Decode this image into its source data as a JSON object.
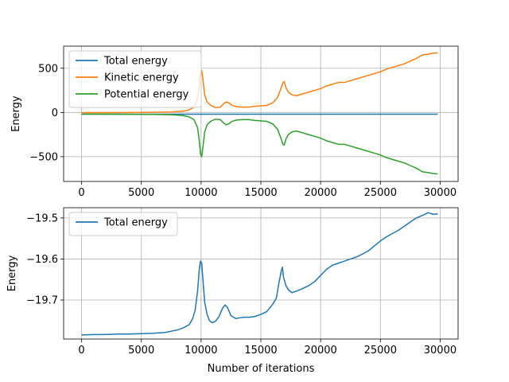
{
  "chart_data": [
    {
      "type": "line",
      "xlabel": "",
      "ylabel": "Energy",
      "xlim": [
        -1500,
        31500
      ],
      "ylim": [
        -780,
        750
      ],
      "xticks": [
        0,
        5000,
        10000,
        15000,
        20000,
        25000,
        30000
      ],
      "xtick_labels": [
        "0",
        "5000",
        "10000",
        "15000",
        "20000",
        "25000",
        "30000"
      ],
      "yticks": [
        -500,
        0,
        500
      ],
      "ytick_labels": [
        "−500",
        "0",
        "500"
      ],
      "grid": true,
      "legend_position": "top-left",
      "series": [
        {
          "name": "Total energy",
          "color": "#1f77b4",
          "points": [
            [
              0,
              -19.8
            ],
            [
              29800,
              -19.5
            ]
          ]
        },
        {
          "name": "Kinetic energy",
          "color": "#ff7f0e",
          "points": [
            [
              0,
              -2
            ],
            [
              3000,
              -1
            ],
            [
              6000,
              2
            ],
            [
              7500,
              5
            ],
            [
              8500,
              15
            ],
            [
              9000,
              30
            ],
            [
              9400,
              60
            ],
            [
              9700,
              150
            ],
            [
              9850,
              300
            ],
            [
              9950,
              450
            ],
            [
              10050,
              480
            ],
            [
              10150,
              380
            ],
            [
              10300,
              200
            ],
            [
              10500,
              120
            ],
            [
              10800,
              80
            ],
            [
              11200,
              55
            ],
            [
              11600,
              60
            ],
            [
              11900,
              100
            ],
            [
              12100,
              120
            ],
            [
              12300,
              110
            ],
            [
              12600,
              80
            ],
            [
              13000,
              65
            ],
            [
              13500,
              60
            ],
            [
              14000,
              60
            ],
            [
              14500,
              70
            ],
            [
              15000,
              75
            ],
            [
              15500,
              80
            ],
            [
              16000,
              110
            ],
            [
              16400,
              170
            ],
            [
              16700,
              280
            ],
            [
              16850,
              340
            ],
            [
              16950,
              350
            ],
            [
              17100,
              280
            ],
            [
              17300,
              230
            ],
            [
              17600,
              200
            ],
            [
              18000,
              190
            ],
            [
              18500,
              210
            ],
            [
              19000,
              230
            ],
            [
              19500,
              250
            ],
            [
              20000,
              270
            ],
            [
              20500,
              300
            ],
            [
              21000,
              320
            ],
            [
              21500,
              340
            ],
            [
              22000,
              340
            ],
            [
              22500,
              360
            ],
            [
              23000,
              380
            ],
            [
              23500,
              400
            ],
            [
              24000,
              420
            ],
            [
              24500,
              440
            ],
            [
              25000,
              460
            ],
            [
              25500,
              490
            ],
            [
              26000,
              510
            ],
            [
              26500,
              530
            ],
            [
              27000,
              550
            ],
            [
              27500,
              580
            ],
            [
              28000,
              610
            ],
            [
              28500,
              650
            ],
            [
              29000,
              660
            ],
            [
              29400,
              670
            ],
            [
              29800,
              675
            ]
          ]
        },
        {
          "name": "Potential energy",
          "color": "#2ca02c",
          "points": [
            [
              0,
              -18
            ],
            [
              3000,
              -19
            ],
            [
              6000,
              -22
            ],
            [
              7500,
              -25
            ],
            [
              8500,
              -35
            ],
            [
              9000,
              -50
            ],
            [
              9400,
              -80
            ],
            [
              9700,
              -170
            ],
            [
              9850,
              -320
            ],
            [
              9950,
              -470
            ],
            [
              10050,
              -500
            ],
            [
              10150,
              -400
            ],
            [
              10300,
              -220
            ],
            [
              10500,
              -140
            ],
            [
              10800,
              -100
            ],
            [
              11200,
              -75
            ],
            [
              11600,
              -80
            ],
            [
              11900,
              -120
            ],
            [
              12100,
              -140
            ],
            [
              12300,
              -130
            ],
            [
              12600,
              -100
            ],
            [
              13000,
              -85
            ],
            [
              13500,
              -80
            ],
            [
              14000,
              -80
            ],
            [
              14500,
              -90
            ],
            [
              15000,
              -95
            ],
            [
              15500,
              -100
            ],
            [
              16000,
              -130
            ],
            [
              16400,
              -190
            ],
            [
              16700,
              -300
            ],
            [
              16850,
              -360
            ],
            [
              16950,
              -370
            ],
            [
              17100,
              -300
            ],
            [
              17300,
              -250
            ],
            [
              17600,
              -220
            ],
            [
              18000,
              -210
            ],
            [
              18500,
              -230
            ],
            [
              19000,
              -250
            ],
            [
              19500,
              -270
            ],
            [
              20000,
              -290
            ],
            [
              20500,
              -320
            ],
            [
              21000,
              -340
            ],
            [
              21500,
              -360
            ],
            [
              22000,
              -360
            ],
            [
              22500,
              -380
            ],
            [
              23000,
              -400
            ],
            [
              23500,
              -420
            ],
            [
              24000,
              -440
            ],
            [
              24500,
              -460
            ],
            [
              25000,
              -480
            ],
            [
              25500,
              -510
            ],
            [
              26000,
              -530
            ],
            [
              26500,
              -550
            ],
            [
              27000,
              -570
            ],
            [
              27500,
              -600
            ],
            [
              28000,
              -630
            ],
            [
              28500,
              -670
            ],
            [
              29000,
              -680
            ],
            [
              29400,
              -690
            ],
            [
              29800,
              -695
            ]
          ]
        }
      ]
    },
    {
      "type": "line",
      "xlabel": "Number of iterations",
      "ylabel": "Energy",
      "xlim": [
        -1500,
        31500
      ],
      "ylim": [
        -19.795,
        -19.475
      ],
      "xticks": [
        0,
        5000,
        10000,
        15000,
        20000,
        25000,
        30000
      ],
      "xtick_labels": [
        "0",
        "5000",
        "10000",
        "15000",
        "20000",
        "25000",
        "30000"
      ],
      "yticks": [
        -19.7,
        -19.6,
        -19.5
      ],
      "ytick_labels": [
        "−19.7",
        "−19.6",
        "−19.5"
      ],
      "grid": true,
      "legend_position": "top-left",
      "series": [
        {
          "name": "Total energy",
          "color": "#1f77b4",
          "points": [
            [
              0,
              -19.785
            ],
            [
              1000,
              -19.784
            ],
            [
              2000,
              -19.784
            ],
            [
              3000,
              -19.783
            ],
            [
              4000,
              -19.783
            ],
            [
              5000,
              -19.782
            ],
            [
              6000,
              -19.781
            ],
            [
              7000,
              -19.779
            ],
            [
              7500,
              -19.776
            ],
            [
              8000,
              -19.773
            ],
            [
              8500,
              -19.768
            ],
            [
              9000,
              -19.76
            ],
            [
              9300,
              -19.745
            ],
            [
              9500,
              -19.725
            ],
            [
              9700,
              -19.68
            ],
            [
              9850,
              -19.625
            ],
            [
              9950,
              -19.605
            ],
            [
              10050,
              -19.61
            ],
            [
              10150,
              -19.65
            ],
            [
              10300,
              -19.705
            ],
            [
              10500,
              -19.735
            ],
            [
              10700,
              -19.75
            ],
            [
              10900,
              -19.755
            ],
            [
              11200,
              -19.752
            ],
            [
              11500,
              -19.74
            ],
            [
              11800,
              -19.72
            ],
            [
              12000,
              -19.712
            ],
            [
              12200,
              -19.718
            ],
            [
              12500,
              -19.738
            ],
            [
              12900,
              -19.745
            ],
            [
              13300,
              -19.743
            ],
            [
              13700,
              -19.742
            ],
            [
              14100,
              -19.742
            ],
            [
              14500,
              -19.74
            ],
            [
              15000,
              -19.735
            ],
            [
              15500,
              -19.728
            ],
            [
              16000,
              -19.71
            ],
            [
              16300,
              -19.695
            ],
            [
              16500,
              -19.66
            ],
            [
              16700,
              -19.63
            ],
            [
              16800,
              -19.62
            ],
            [
              16900,
              -19.645
            ],
            [
              17100,
              -19.665
            ],
            [
              17300,
              -19.675
            ],
            [
              17600,
              -19.682
            ],
            [
              18000,
              -19.678
            ],
            [
              18500,
              -19.672
            ],
            [
              19000,
              -19.665
            ],
            [
              19500,
              -19.655
            ],
            [
              20000,
              -19.64
            ],
            [
              20500,
              -19.625
            ],
            [
              21000,
              -19.615
            ],
            [
              21500,
              -19.61
            ],
            [
              22000,
              -19.605
            ],
            [
              22500,
              -19.6
            ],
            [
              23000,
              -19.595
            ],
            [
              23500,
              -19.588
            ],
            [
              24000,
              -19.58
            ],
            [
              24500,
              -19.568
            ],
            [
              25000,
              -19.556
            ],
            [
              25500,
              -19.546
            ],
            [
              26000,
              -19.538
            ],
            [
              26500,
              -19.53
            ],
            [
              27000,
              -19.52
            ],
            [
              27500,
              -19.51
            ],
            [
              28000,
              -19.5
            ],
            [
              28500,
              -19.494
            ],
            [
              29000,
              -19.487
            ],
            [
              29400,
              -19.491
            ],
            [
              29800,
              -19.49
            ]
          ]
        }
      ]
    }
  ]
}
